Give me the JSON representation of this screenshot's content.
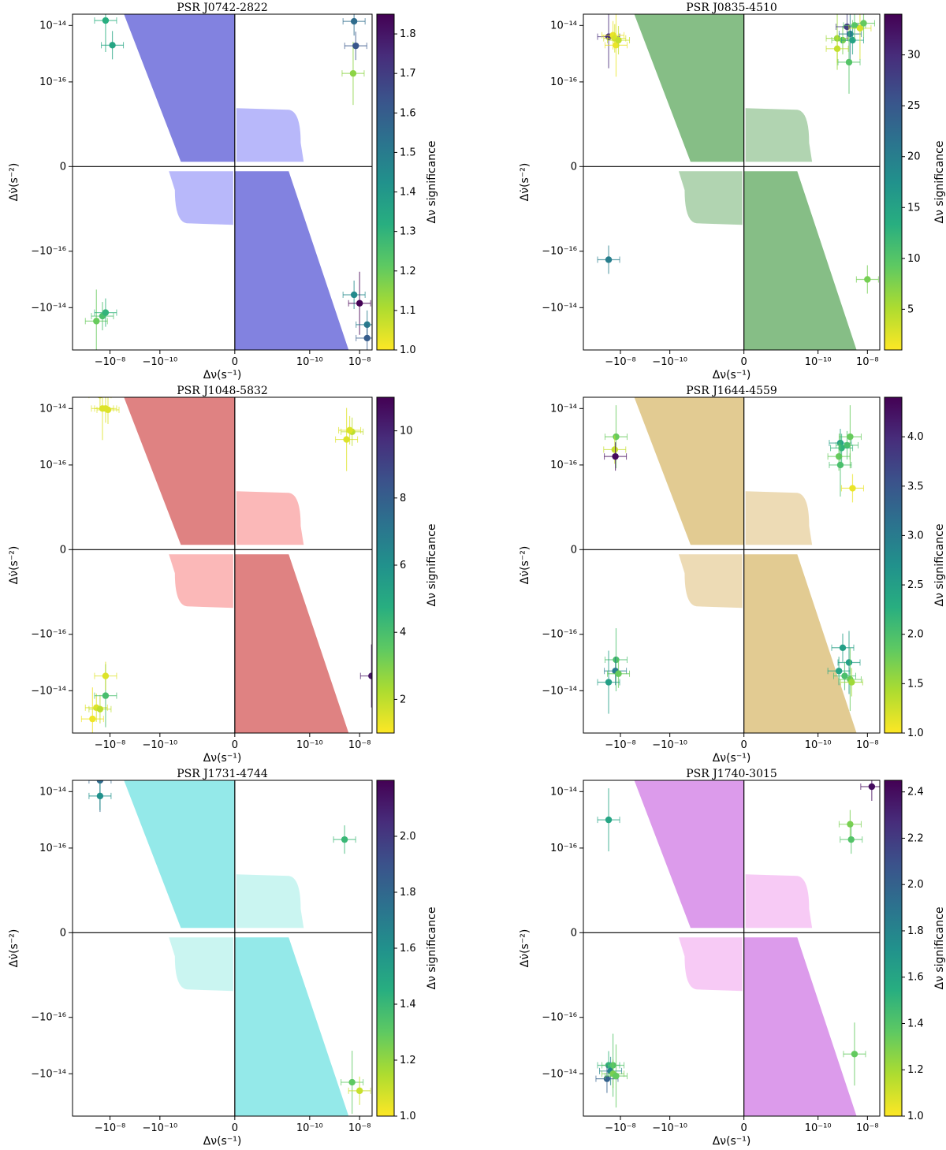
{
  "chart_data": [
    {
      "type": "scatter",
      "title": "PSR J0742-2822",
      "xlabel": "Δν(s⁻¹)",
      "ylabel": "Δν̇(s⁻²)",
      "colorbar_label": "Δν significance",
      "colorbar_range": [
        1.0,
        1.85
      ],
      "colorbar_ticks": [
        "1.0",
        "1.1",
        "1.2",
        "1.3",
        "1.4",
        "1.5",
        "1.6",
        "1.7",
        "1.8"
      ],
      "region_color": "#7b7bde",
      "region_light": "#b0b0fa",
      "points": [
        {
          "x": -3.5e-08,
          "y": -3e-14,
          "sig": 1.2
        },
        {
          "x": -2e-08,
          "y": -2e-14,
          "sig": 1.25
        },
        {
          "x": -1.5e-08,
          "y": -1.5e-14,
          "sig": 1.3
        },
        {
          "x": -1.5e-08,
          "y": 1.5e-14,
          "sig": 1.32
        },
        {
          "x": -8e-09,
          "y": 2e-15,
          "sig": 1.35
        },
        {
          "x": 6e-09,
          "y": 1.4e-14,
          "sig": 1.55
        },
        {
          "x": 5.5e-09,
          "y": 2e-16,
          "sig": 1.15
        },
        {
          "x": 7e-09,
          "y": 1.9e-15,
          "sig": 1.62
        },
        {
          "x": 6e-09,
          "y": -3.5e-15,
          "sig": 1.45
        },
        {
          "x": 1e-08,
          "y": -7e-15,
          "sig": 1.85
        },
        {
          "x": 2e-08,
          "y": -4e-14,
          "sig": 1.5
        },
        {
          "x": 2e-08,
          "y": -1.2e-13,
          "sig": 1.6
        },
        {
          "x": 8e-08,
          "y": 1e-13,
          "sig": 1.55
        }
      ]
    },
    {
      "type": "scatter",
      "title": "PSR J0835-4510",
      "xlabel": "Δν(s⁻¹)",
      "ylabel": "Δν̇(s⁻²)",
      "colorbar_label": "Δν significance",
      "colorbar_range": [
        1.0,
        34.0
      ],
      "colorbar_ticks": [
        "5",
        "10",
        "15",
        "20",
        "25",
        "30"
      ],
      "region_color": "#7fba7f",
      "region_light": "#a9cfa9",
      "points": [
        {
          "x": -3e-08,
          "y": 4e-15,
          "sig": 30
        },
        {
          "x": -2e-08,
          "y": 4.5e-15,
          "sig": 2
        },
        {
          "x": -1.7e-08,
          "y": 3.5e-15,
          "sig": 3
        },
        {
          "x": -1.5e-08,
          "y": 2e-15,
          "sig": 2
        },
        {
          "x": -1.2e-08,
          "y": 3e-15,
          "sig": 4
        },
        {
          "x": -3e-08,
          "y": -2e-16,
          "sig": 20
        },
        {
          "x": 6e-10,
          "y": 3.5e-15,
          "sig": 6
        },
        {
          "x": 1e-09,
          "y": 3e-15,
          "sig": 8
        },
        {
          "x": 1.5e-09,
          "y": 9e-15,
          "sig": 28
        },
        {
          "x": 2e-09,
          "y": 5e-15,
          "sig": 20
        },
        {
          "x": 2.5e-09,
          "y": 3e-15,
          "sig": 15
        },
        {
          "x": 3e-09,
          "y": 1e-14,
          "sig": 10
        },
        {
          "x": 5e-09,
          "y": 8e-15,
          "sig": 3
        },
        {
          "x": 7e-09,
          "y": 1.2e-14,
          "sig": 9
        },
        {
          "x": 6e-10,
          "y": 1.5e-15,
          "sig": 4
        },
        {
          "x": 1.8e-09,
          "y": 5e-16,
          "sig": 10
        },
        {
          "x": 1e-08,
          "y": -1e-15,
          "sig": 8
        }
      ]
    },
    {
      "type": "scatter",
      "title": "PSR J1048-5832",
      "xlabel": "Δν(s⁻¹)",
      "ylabel": "Δν̇(s⁻²)",
      "colorbar_label": "Δν significance",
      "colorbar_range": [
        1.0,
        11.0
      ],
      "colorbar_ticks": [
        "2",
        "4",
        "6",
        "8",
        "10"
      ],
      "region_color": "#dd7b7b",
      "region_light": "#fbb0b0",
      "points": [
        {
          "x": -5e-08,
          "y": -1e-13,
          "sig": 1.2
        },
        {
          "x": -3.5e-08,
          "y": -4e-14,
          "sig": 1.5
        },
        {
          "x": -2.5e-08,
          "y": -4.5e-14,
          "sig": 2
        },
        {
          "x": -1.5e-08,
          "y": -1.5e-14,
          "sig": 4
        },
        {
          "x": -1.5e-08,
          "y": -3e-15,
          "sig": 1.5
        },
        {
          "x": -2.5e-08,
          "y": 3e-14,
          "sig": 1.5
        },
        {
          "x": -2e-08,
          "y": 1e-14,
          "sig": 1.5
        },
        {
          "x": -1.5e-08,
          "y": 1e-14,
          "sig": 1.5
        },
        {
          "x": -1.2e-08,
          "y": 9e-15,
          "sig": 1.5
        },
        {
          "x": 3e-09,
          "y": 8e-16,
          "sig": 1.5
        },
        {
          "x": 5e-09,
          "y": 1.5e-15,
          "sig": 2
        },
        {
          "x": 4e-09,
          "y": 1.7e-15,
          "sig": 1.5
        },
        {
          "x": 3e-08,
          "y": -3e-15,
          "sig": 10.5
        },
        {
          "x": 8e-08,
          "y": 1e-13,
          "sig": 3.5
        }
      ]
    },
    {
      "type": "scatter",
      "title": "PSR J1644-4559",
      "xlabel": "Δν(s⁻¹)",
      "ylabel": "Δν̇(s⁻²)",
      "colorbar_label": "Δν significance",
      "colorbar_range": [
        1.0,
        4.4
      ],
      "colorbar_ticks": [
        "1.0",
        "1.5",
        "2.0",
        "2.5",
        "3.0",
        "3.5",
        "4.0"
      ],
      "region_color": "#e0c88c",
      "region_light": "#ebd7ad",
      "points": [
        {
          "x": -1.5e-08,
          "y": 1e-15,
          "sig": 1.8
        },
        {
          "x": -1.7e-08,
          "y": 3.5e-16,
          "sig": 1.3
        },
        {
          "x": -1.6e-08,
          "y": 2e-16,
          "sig": 4.3
        },
        {
          "x": -1.5e-08,
          "y": -8e-16,
          "sig": 2.0
        },
        {
          "x": -1.6e-08,
          "y": -2e-15,
          "sig": 3.0
        },
        {
          "x": -1.2e-08,
          "y": -2.5e-15,
          "sig": 1.8
        },
        {
          "x": -3e-08,
          "y": -5e-15,
          "sig": 2.5
        },
        {
          "x": 8e-10,
          "y": 6e-16,
          "sig": 2.5
        },
        {
          "x": 1.5e-09,
          "y": 5e-16,
          "sig": 2.0
        },
        {
          "x": 2e-09,
          "y": 1e-15,
          "sig": 1.8
        },
        {
          "x": 9e-10,
          "y": 4e-16,
          "sig": 2.2
        },
        {
          "x": 7e-10,
          "y": 2e-16,
          "sig": 1.8
        },
        {
          "x": 8e-10,
          "y": 1e-16,
          "sig": 2.0
        },
        {
          "x": 2.5e-09,
          "y": 1.5e-17,
          "sig": 1.1
        },
        {
          "x": 1e-09,
          "y": -3e-16,
          "sig": 2.5
        },
        {
          "x": 1.8e-09,
          "y": -1e-15,
          "sig": 2.5
        },
        {
          "x": 7e-10,
          "y": -2e-15,
          "sig": 2.4
        },
        {
          "x": 1.2e-09,
          "y": -3e-15,
          "sig": 2.0
        },
        {
          "x": 2e-09,
          "y": -4e-15,
          "sig": 1.8
        },
        {
          "x": 2.3e-09,
          "y": -5e-15,
          "sig": 1.5
        }
      ]
    },
    {
      "type": "scatter",
      "title": "PSR J1731-4744",
      "xlabel": "Δν(s⁻¹)",
      "ylabel": "Δν̇(s⁻²)",
      "colorbar_label": "Δν significance",
      "colorbar_range": [
        1.0,
        2.2
      ],
      "colorbar_ticks": [
        "1.0",
        "1.2",
        "1.4",
        "1.6",
        "1.8",
        "2.0"
      ],
      "region_color": "#8ee8e8",
      "region_light": "#c4f4f0",
      "points": [
        {
          "x": -2.5e-08,
          "y": 2.5e-14,
          "sig": 1.8
        },
        {
          "x": -2.5e-08,
          "y": 7e-15,
          "sig": 1.6
        },
        {
          "x": 2.5e-09,
          "y": 2e-16,
          "sig": 1.4
        },
        {
          "x": 5e-09,
          "y": -2e-14,
          "sig": 1.3
        },
        {
          "x": 1e-08,
          "y": -4e-14,
          "sig": 1.1
        }
      ]
    },
    {
      "type": "scatter",
      "title": "PSR J1740-3015",
      "xlabel": "Δν(s⁻¹)",
      "ylabel": "Δν̇(s⁻²)",
      "colorbar_label": "Δν significance",
      "colorbar_range": [
        1.0,
        2.45
      ],
      "colorbar_ticks": [
        "1.0",
        "1.2",
        "1.4",
        "1.6",
        "1.8",
        "2.0",
        "2.2",
        "2.4"
      ],
      "region_color": "#da96ea",
      "region_light": "#f6c4f4",
      "points": [
        {
          "x": -3e-08,
          "y": 1e-15,
          "sig": 1.6
        },
        {
          "x": -3e-08,
          "y": -5e-15,
          "sig": 1.5
        },
        {
          "x": -2.5e-08,
          "y": -8e-15,
          "sig": 1.8
        },
        {
          "x": -2e-08,
          "y": -5e-15,
          "sig": 1.4
        },
        {
          "x": -2e-08,
          "y": -1e-14,
          "sig": 1.3
        },
        {
          "x": -3.5e-08,
          "y": -1.5e-14,
          "sig": 2.0
        },
        {
          "x": -1.5e-08,
          "y": -1.2e-14,
          "sig": 1.35
        },
        {
          "x": 2e-09,
          "y": 7e-16,
          "sig": 1.3
        },
        {
          "x": 2.2e-09,
          "y": 2e-16,
          "sig": 1.4
        },
        {
          "x": 3e-09,
          "y": -2e-15,
          "sig": 1.35
        },
        {
          "x": 1.5e-08,
          "y": 1.5e-14,
          "sig": 2.4
        }
      ]
    }
  ]
}
